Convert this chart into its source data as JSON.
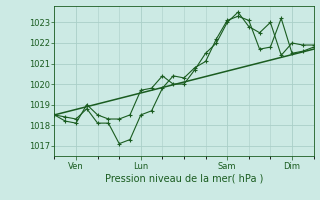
{
  "xlabel": "Pression niveau de la mer( hPa )",
  "background_color": "#cceae4",
  "grid_color": "#aacfc8",
  "line_color": "#1a5c20",
  "text_color": "#1a5c20",
  "ylim": [
    1016.5,
    1023.8
  ],
  "yticks": [
    1017,
    1018,
    1019,
    1020,
    1021,
    1022,
    1023
  ],
  "xlim": [
    0,
    96
  ],
  "xtick_positions": [
    8,
    32,
    64,
    88
  ],
  "xtick_labels": [
    "Ven",
    "Lun",
    "Sam",
    "Dim"
  ],
  "series1_x": [
    0,
    4,
    8,
    12,
    16,
    20,
    24,
    28,
    32,
    36,
    40,
    44,
    48,
    52,
    56,
    60,
    64,
    68,
    72,
    76,
    80,
    84,
    88,
    92,
    96
  ],
  "series1_y": [
    1018.5,
    1018.4,
    1018.3,
    1018.8,
    1018.1,
    1018.1,
    1017.1,
    1017.3,
    1018.5,
    1018.7,
    1019.8,
    1020.4,
    1020.3,
    1020.8,
    1021.1,
    1022.2,
    1023.1,
    1023.3,
    1023.1,
    1021.7,
    1021.8,
    1023.2,
    1021.5,
    1021.6,
    1021.8
  ],
  "series2_x": [
    0,
    4,
    8,
    12,
    16,
    20,
    24,
    28,
    32,
    36,
    40,
    44,
    48,
    52,
    56,
    60,
    64,
    68,
    72,
    76,
    80,
    84,
    88,
    92,
    96
  ],
  "series2_y": [
    1018.5,
    1018.2,
    1018.1,
    1019.0,
    1018.5,
    1018.3,
    1018.3,
    1018.5,
    1019.7,
    1019.8,
    1020.4,
    1020.0,
    1020.0,
    1020.7,
    1021.5,
    1022.0,
    1023.0,
    1023.5,
    1022.8,
    1022.5,
    1023.0,
    1021.4,
    1022.0,
    1021.9,
    1021.9
  ],
  "series3_x": [
    0,
    96
  ],
  "series3_y": [
    1018.5,
    1021.7
  ],
  "figsize": [
    3.2,
    2.0
  ],
  "dpi": 100
}
